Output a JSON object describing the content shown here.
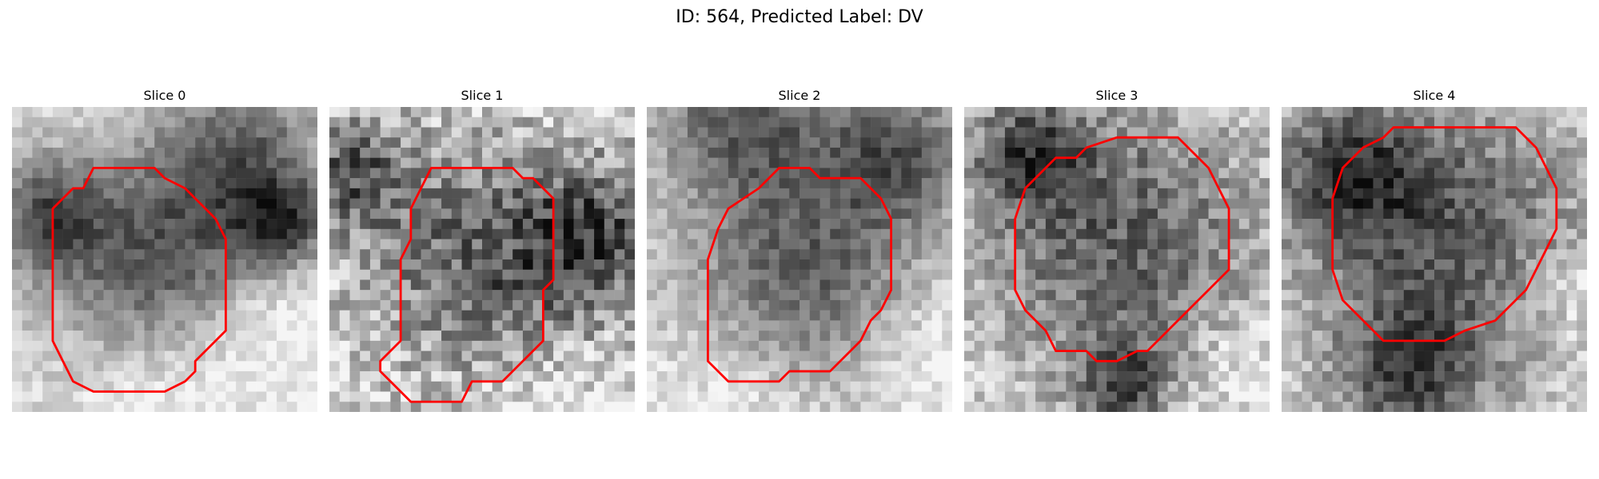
{
  "figure": {
    "title": "ID: 564, Predicted Label: DV",
    "panels": [
      {
        "label": "Slice 0"
      },
      {
        "label": "Slice 1"
      },
      {
        "label": "Slice 2"
      },
      {
        "label": "Slice 3"
      },
      {
        "label": "Slice 4"
      }
    ],
    "colors": {
      "contour": "#ff0000",
      "background": "#ffffff"
    }
  }
}
